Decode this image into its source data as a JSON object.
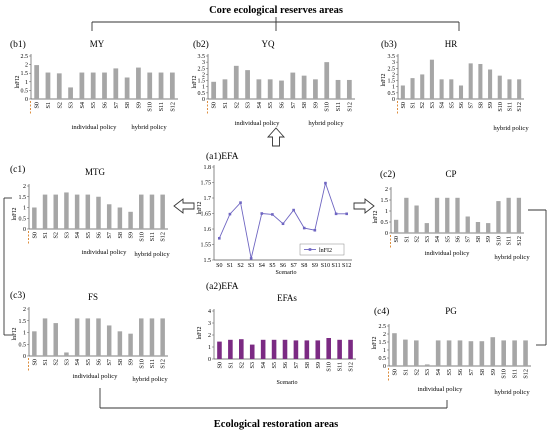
{
  "headers": {
    "top": "Core ecological reserves areas",
    "bottom": "Ecological restoration areas"
  },
  "groups": {
    "individual": "individual policy",
    "hybrid": "hybrid policy"
  },
  "scenarios": [
    "S0",
    "S1",
    "S2",
    "S3",
    "S4",
    "S5",
    "S6",
    "S7",
    "S8",
    "S9",
    "S10",
    "S11",
    "S12"
  ],
  "colors": {
    "bar": "#a6a6a6",
    "purple": "#7b2a83",
    "line": "#6f66c2",
    "dash": "#d9822b",
    "axis": "#555555"
  },
  "chart_data": [
    {
      "id": "b1",
      "panel_label": "(b1)",
      "title": "MY",
      "type": "bar",
      "ylabel": "lnFI2",
      "yticks": [
        "0",
        "0.5",
        "1",
        "1.5",
        "2",
        "2.5"
      ],
      "ylim": [
        0,
        2.6
      ],
      "values": [
        2.05,
        1.6,
        1.55,
        0.7,
        1.6,
        1.6,
        1.6,
        1.85,
        1.3,
        1.9,
        1.6,
        1.6,
        1.6
      ]
    },
    {
      "id": "b2",
      "panel_label": "(b2)",
      "title": "YQ",
      "type": "bar",
      "ylabel": "lnFI2",
      "yticks": [
        "0",
        "0.5",
        "1",
        "1.5",
        "2",
        "2.5",
        "3",
        "3.5"
      ],
      "ylim": [
        0,
        3.5
      ],
      "values": [
        1.4,
        1.6,
        2.7,
        2.35,
        1.6,
        1.6,
        1.5,
        2.15,
        1.9,
        1.6,
        3.0,
        1.55,
        1.55
      ]
    },
    {
      "id": "b3",
      "panel_label": "(b3)",
      "title": "HR",
      "type": "bar",
      "ylabel": "lnFI2",
      "yticks": [
        "0",
        "0.5",
        "1",
        "1.5",
        "2",
        "2.5",
        "3",
        "3.5"
      ],
      "ylim": [
        0,
        3.5
      ],
      "values": [
        1.1,
        1.7,
        2.0,
        3.2,
        1.6,
        1.6,
        1.1,
        2.9,
        2.85,
        2.4,
        1.9,
        1.6,
        1.6
      ]
    },
    {
      "id": "c1",
      "panel_label": "(c1)",
      "title": "MTG",
      "type": "bar",
      "ylabel": "lnFI2",
      "yticks": [
        "0",
        "0.5",
        "1",
        "1.5",
        "2"
      ],
      "ylim": [
        0,
        2.0
      ],
      "values": [
        1.0,
        1.6,
        1.6,
        1.7,
        1.6,
        1.6,
        1.5,
        1.15,
        1.0,
        0.8,
        1.6,
        1.6,
        1.6
      ]
    },
    {
      "id": "c2",
      "panel_label": "(c2)",
      "title": "CP",
      "type": "bar",
      "ylabel": "lnFI2",
      "yticks": [
        "0",
        "0.5",
        "1",
        "1.5",
        "2"
      ],
      "ylim": [
        0,
        2.0
      ],
      "values": [
        0.6,
        1.6,
        1.25,
        0.45,
        1.6,
        1.6,
        1.6,
        0.75,
        0.5,
        0.45,
        1.45,
        1.6,
        1.6
      ]
    },
    {
      "id": "c3",
      "panel_label": "(c3)",
      "title": "FS",
      "type": "bar",
      "ylabel": "lnFI2",
      "yticks": [
        "0",
        "0.5",
        "1",
        "1.5",
        "2"
      ],
      "ylim": [
        0,
        2.0
      ],
      "values": [
        1.05,
        1.6,
        1.4,
        0.15,
        1.6,
        1.6,
        1.6,
        1.3,
        1.05,
        0.95,
        1.6,
        1.6,
        1.6
      ]
    },
    {
      "id": "c4",
      "panel_label": "(c4)",
      "title": "PG",
      "type": "bar",
      "ylabel": "lnFI2",
      "yticks": [
        "0",
        "0.5",
        "1",
        "1.5",
        "2",
        "2.5"
      ],
      "ylim": [
        0,
        2.5
      ],
      "values": [
        2.05,
        1.65,
        1.6,
        0.1,
        1.6,
        1.6,
        1.6,
        1.55,
        1.55,
        1.8,
        1.6,
        1.6,
        1.6
      ]
    },
    {
      "id": "a1",
      "panel_label": "(a1)EFA",
      "title": "",
      "type": "line",
      "ylabel": "lnFI2",
      "xlabel": "Scenario",
      "legend": "lnFI2",
      "yticks": [
        "1.5",
        "1.55",
        "1.6",
        "1.65",
        "1.7",
        "1.75",
        "1.8"
      ],
      "ylim": [
        1.5,
        1.8
      ],
      "values": [
        1.57,
        1.648,
        1.685,
        1.505,
        1.65,
        1.647,
        1.617,
        1.661,
        1.603,
        1.596,
        1.748,
        1.649,
        1.649
      ]
    },
    {
      "id": "a2",
      "panel_label": "(a2)EFA",
      "title": "EFAs",
      "type": "bar",
      "ylabel": "lnFI2",
      "xlabel": "Scenario",
      "yticks": [
        "0",
        "1",
        "2",
        "3",
        "4"
      ],
      "ylim": [
        0,
        4
      ],
      "values": [
        1.45,
        1.6,
        1.65,
        1.2,
        1.6,
        1.6,
        1.6,
        1.55,
        1.55,
        1.55,
        1.75,
        1.6,
        1.6
      ]
    }
  ]
}
